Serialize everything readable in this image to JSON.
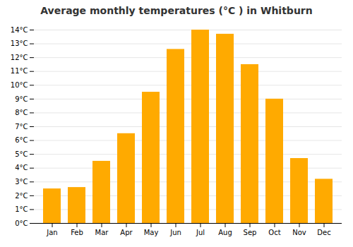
{
  "chart_data": {
    "type": "bar",
    "title": "Average monthly temperatures (°C ) in Whitburn",
    "categories": [
      "Jan",
      "Feb",
      "Mar",
      "Apr",
      "May",
      "Jun",
      "Jul",
      "Aug",
      "Sep",
      "Oct",
      "Nov",
      "Dec"
    ],
    "values": [
      2.5,
      2.6,
      4.5,
      6.5,
      9.5,
      12.6,
      14.0,
      13.7,
      11.5,
      9.0,
      4.7,
      3.2
    ],
    "color": "#FFAA00",
    "ylim": [
      0,
      14
    ],
    "yticks": [
      {
        "value": 0,
        "label": "0°C"
      },
      {
        "value": 1,
        "label": "1°C"
      },
      {
        "value": 2,
        "label": "2°C"
      },
      {
        "value": 3,
        "label": "3°C"
      },
      {
        "value": 4,
        "label": "4°C"
      },
      {
        "value": 5,
        "label": "5°C"
      },
      {
        "value": 6,
        "label": "6°C"
      },
      {
        "value": 7,
        "label": "7°C"
      },
      {
        "value": 8,
        "label": "8°C"
      },
      {
        "value": 9,
        "label": "9°C"
      },
      {
        "value": 10,
        "label": "10°C"
      },
      {
        "value": 11,
        "label": "11°C"
      },
      {
        "value": 12,
        "label": "12°C"
      },
      {
        "value": 13,
        "label": "13°C"
      },
      {
        "value": 14,
        "label": "14°C"
      }
    ],
    "grid": true
  }
}
